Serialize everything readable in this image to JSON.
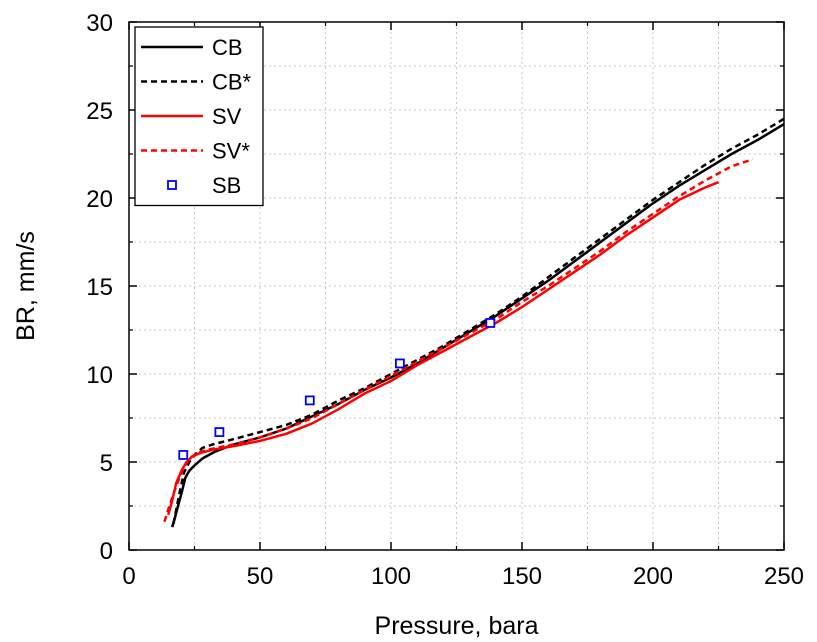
{
  "chart_data": {
    "type": "line",
    "xlabel": "Pressure, bara",
    "ylabel": "BR, mm/s",
    "xlim": [
      0,
      250
    ],
    "ylim": [
      0,
      30
    ],
    "x_ticks": [
      0,
      50,
      100,
      150,
      200,
      250
    ],
    "y_ticks": [
      0,
      5,
      10,
      15,
      20,
      25,
      30
    ],
    "grid": true,
    "legend_position": "top-left",
    "series": [
      {
        "name": "CB",
        "style": "solid",
        "color": "#000000",
        "x": [
          16.5,
          17.5,
          18.5,
          20,
          21.5,
          23,
          25,
          28,
          33,
          40,
          50,
          60,
          70,
          80,
          90,
          100,
          110,
          120,
          130,
          140,
          150,
          160,
          170,
          180,
          190,
          200,
          210,
          220,
          230,
          240,
          250
        ],
        "y": [
          1.3,
          1.8,
          2.4,
          3.2,
          4.1,
          4.5,
          4.8,
          5.2,
          5.6,
          6.0,
          6.4,
          6.9,
          7.6,
          8.3,
          9.1,
          9.8,
          10.6,
          11.5,
          12.4,
          13.3,
          14.3,
          15.3,
          16.4,
          17.5,
          18.6,
          19.7,
          20.7,
          21.6,
          22.5,
          23.3,
          24.2
        ]
      },
      {
        "name": "CB*",
        "style": "dashed",
        "color": "#000000",
        "x": [
          17,
          18,
          19.5,
          21,
          23,
          25,
          28,
          32,
          40,
          50,
          60,
          70,
          80,
          90,
          100,
          110,
          120,
          130,
          140,
          150,
          160,
          170,
          180,
          190,
          200,
          210,
          220,
          230,
          240,
          250
        ],
        "y": [
          1.5,
          2.3,
          3.4,
          4.4,
          5.0,
          5.4,
          5.8,
          6.0,
          6.3,
          6.7,
          7.1,
          7.7,
          8.5,
          9.2,
          10.0,
          10.8,
          11.6,
          12.5,
          13.4,
          14.4,
          15.5,
          16.6,
          17.7,
          18.8,
          19.9,
          20.9,
          21.9,
          22.8,
          23.6,
          24.5
        ]
      },
      {
        "name": "SV",
        "style": "solid",
        "color": "#ff0000",
        "x": [
          15,
          16.5,
          18,
          20,
          22,
          24,
          27,
          32,
          40,
          50,
          60,
          70,
          80,
          90,
          100,
          110,
          120,
          130,
          140,
          150,
          160,
          170,
          180,
          190,
          200,
          210,
          220,
          225
        ],
        "y": [
          2.0,
          2.8,
          3.8,
          4.5,
          5.0,
          5.3,
          5.5,
          5.7,
          5.9,
          6.2,
          6.6,
          7.2,
          8.0,
          8.9,
          9.6,
          10.5,
          11.3,
          12.1,
          12.9,
          13.8,
          14.8,
          15.8,
          16.8,
          17.9,
          18.9,
          19.9,
          20.6,
          20.9
        ]
      },
      {
        "name": "SV*",
        "style": "dashed",
        "color": "#ff0000",
        "x": [
          13.5,
          15,
          17,
          19,
          21,
          23,
          26,
          30,
          40,
          50,
          60,
          70,
          80,
          90,
          100,
          110,
          120,
          130,
          140,
          150,
          160,
          170,
          180,
          190,
          200,
          210,
          220,
          230,
          238
        ],
        "y": [
          1.6,
          2.3,
          3.2,
          4.0,
          4.7,
          5.2,
          5.5,
          5.7,
          6.0,
          6.4,
          6.9,
          7.5,
          8.3,
          9.1,
          9.9,
          10.7,
          11.5,
          12.3,
          13.1,
          14.1,
          15.0,
          16.0,
          17.0,
          18.1,
          19.1,
          20.1,
          21.0,
          21.8,
          22.2
        ]
      },
      {
        "name": "SB",
        "style": "marker",
        "color": "#0000ff",
        "x": [
          20.7,
          34.5,
          69,
          103.4,
          137.9
        ],
        "y": [
          5.4,
          6.7,
          8.5,
          10.6,
          12.9
        ]
      }
    ]
  }
}
